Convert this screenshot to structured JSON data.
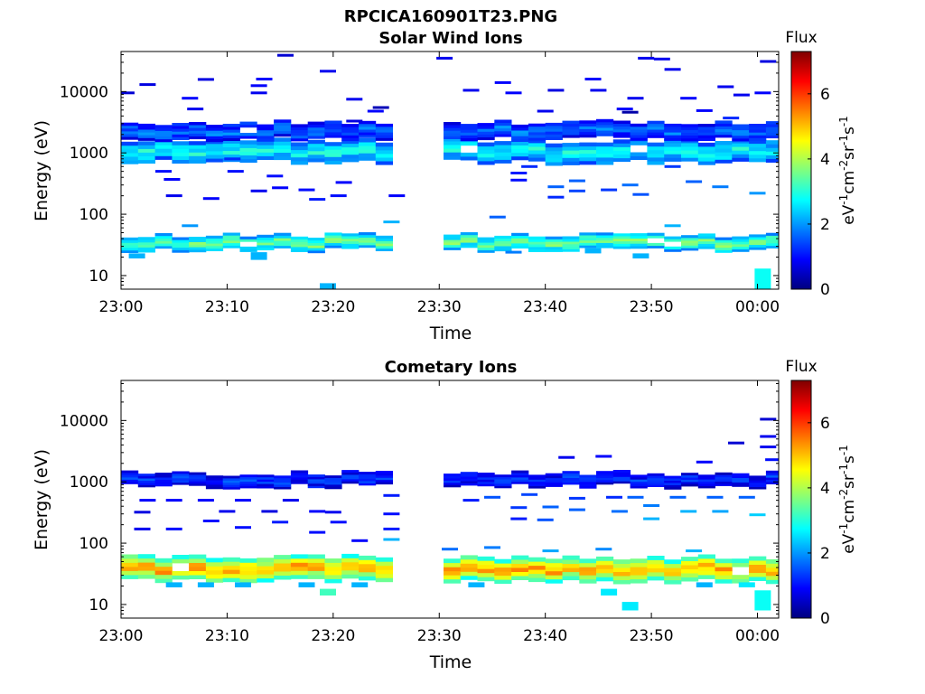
{
  "figure": {
    "title_line1": "RPCICA160901T23.PNG"
  },
  "colors": {
    "colormap": [
      "#00007f",
      "#0000ff",
      "#007fff",
      "#00ffff",
      "#7fff7f",
      "#ffff00",
      "#ff7f00",
      "#ff0000",
      "#7f0000"
    ],
    "axis": "#000000",
    "background": "#ffffff"
  },
  "chart_data": [
    {
      "type": "heatmap",
      "title": "Solar Wind Ions",
      "xlabel": "Time",
      "ylabel": "Energy (eV)",
      "xlim": [
        "23:00",
        "00:02"
      ],
      "xlim_minutes": [
        0,
        62
      ],
      "x_ticks": [
        "23:00",
        "23:10",
        "23:20",
        "23:30",
        "23:40",
        "23:50",
        "00:00"
      ],
      "y_scale": "log",
      "ylim": [
        6,
        45000
      ],
      "y_ticks": [
        10,
        100,
        1000,
        10000
      ],
      "y_tick_labels": [
        "10",
        "100",
        "1000",
        "10000"
      ],
      "colorbar": {
        "title": "Flux",
        "label": "eV-1cm-2sr-1s-1",
        "range": [
          0,
          7.3
        ],
        "ticks": [
          0,
          2,
          4,
          6
        ]
      },
      "data_gap_minutes": [
        27,
        30
      ],
      "cell_minutes": 1.6,
      "bands": [
        {
          "name": "low-energy ion band",
          "emin": 26,
          "emax": 46,
          "level": 3.4
        },
        {
          "name": "main solar wind band",
          "emin": 700,
          "emax": 1600,
          "level": 2.7
        },
        {
          "name": "upper band",
          "emin": 1700,
          "emax": 3200,
          "level": 1.6
        }
      ],
      "scatter": [
        {
          "t": 0.5,
          "e": 9500,
          "level": 0.6
        },
        {
          "t": 2.5,
          "e": 13000,
          "level": 0.7
        },
        {
          "t": 4.0,
          "e": 500,
          "level": 1.0
        },
        {
          "t": 4.8,
          "e": 370,
          "level": 0.9
        },
        {
          "t": 5.0,
          "e": 200,
          "level": 0.8
        },
        {
          "t": 6.5,
          "e": 7800,
          "level": 0.9
        },
        {
          "t": 7.0,
          "e": 5200,
          "level": 0.8
        },
        {
          "t": 8.0,
          "e": 15800,
          "level": 0.7
        },
        {
          "t": 8.5,
          "e": 180,
          "level": 0.9
        },
        {
          "t": 6.5,
          "e": 65,
          "level": 2.0
        },
        {
          "t": 10.5,
          "e": 800,
          "level": 1.2
        },
        {
          "t": 10.8,
          "e": 500,
          "level": 1.0
        },
        {
          "t": 13.0,
          "e": 9500,
          "level": 0.8
        },
        {
          "t": 13.0,
          "e": 12500,
          "level": 0.9
        },
        {
          "t": 13.5,
          "e": 16000,
          "level": 0.9
        },
        {
          "t": 13.0,
          "e": 240,
          "level": 0.8
        },
        {
          "t": 14.5,
          "e": 420,
          "level": 1.0
        },
        {
          "t": 15.0,
          "e": 270,
          "level": 0.9
        },
        {
          "t": 15.5,
          "e": 39000,
          "level": 0.6
        },
        {
          "t": 17.5,
          "e": 250,
          "level": 1.0
        },
        {
          "t": 18.5,
          "e": 175,
          "level": 1.1
        },
        {
          "t": 19.5,
          "e": 21500,
          "level": 0.8
        },
        {
          "t": 20.5,
          "e": 200,
          "level": 1.0
        },
        {
          "t": 21.0,
          "e": 330,
          "level": 0.9
        },
        {
          "t": 22.0,
          "e": 3300,
          "level": 0.7
        },
        {
          "t": 22.0,
          "e": 7500,
          "level": 0.8
        },
        {
          "t": 24.0,
          "e": 4800,
          "level": 0.9
        },
        {
          "t": 24.5,
          "e": 5500,
          "level": 0.4
        },
        {
          "t": 26.0,
          "e": 200,
          "level": 0.9
        },
        {
          "t": 25.5,
          "e": 75,
          "level": 2.2
        },
        {
          "t": 30.5,
          "e": 35000,
          "level": 0.8
        },
        {
          "t": 33.0,
          "e": 10500,
          "level": 0.8
        },
        {
          "t": 37.0,
          "e": 9500,
          "level": 0.9
        },
        {
          "t": 36.0,
          "e": 14000,
          "level": 0.9
        },
        {
          "t": 37.5,
          "e": 470,
          "level": 1.1
        },
        {
          "t": 37.5,
          "e": 360,
          "level": 1.0
        },
        {
          "t": 38.5,
          "e": 600,
          "level": 1.2
        },
        {
          "t": 40.0,
          "e": 4800,
          "level": 0.8
        },
        {
          "t": 41.0,
          "e": 10500,
          "level": 0.7
        },
        {
          "t": 41.0,
          "e": 280,
          "level": 1.6
        },
        {
          "t": 41.0,
          "e": 190,
          "level": 1.2
        },
        {
          "t": 43.0,
          "e": 350,
          "level": 1.6
        },
        {
          "t": 43.0,
          "e": 240,
          "level": 1.4
        },
        {
          "t": 44.5,
          "e": 16000,
          "level": 0.9
        },
        {
          "t": 45.0,
          "e": 10500,
          "level": 0.8
        },
        {
          "t": 46.0,
          "e": 250,
          "level": 1.3
        },
        {
          "t": 47.5,
          "e": 5200,
          "level": 0.9
        },
        {
          "t": 48.0,
          "e": 300,
          "level": 1.7
        },
        {
          "t": 48.5,
          "e": 7800,
          "level": 0.8
        },
        {
          "t": 48.0,
          "e": 4600,
          "level": 0.3
        },
        {
          "t": 49.0,
          "e": 210,
          "level": 1.5
        },
        {
          "t": 49.5,
          "e": 35000,
          "level": 0.8
        },
        {
          "t": 51.0,
          "e": 34000,
          "level": 0.8
        },
        {
          "t": 52.0,
          "e": 23000,
          "level": 0.8
        },
        {
          "t": 52.0,
          "e": 600,
          "level": 1.3
        },
        {
          "t": 53.5,
          "e": 7800,
          "level": 0.9
        },
        {
          "t": 54.0,
          "e": 340,
          "level": 1.6
        },
        {
          "t": 55.0,
          "e": 4900,
          "level": 0.9
        },
        {
          "t": 56.5,
          "e": 280,
          "level": 1.8
        },
        {
          "t": 57.0,
          "e": 12000,
          "level": 0.8
        },
        {
          "t": 57.5,
          "e": 3700,
          "level": 1.2
        },
        {
          "t": 58.5,
          "e": 8800,
          "level": 0.8
        },
        {
          "t": 60.0,
          "e": 220,
          "level": 2.0
        },
        {
          "t": 60.5,
          "e": 9500,
          "level": 0.9
        },
        {
          "t": 61.0,
          "e": 31000,
          "level": 0.7
        },
        {
          "t": 35.5,
          "e": 90,
          "level": 1.6
        },
        {
          "t": 37.0,
          "e": 24,
          "level": 1.8
        },
        {
          "t": 52.0,
          "e": 65,
          "level": 2.2
        }
      ],
      "low_patches": [
        {
          "t": 1.5,
          "emin": 19,
          "emax": 23,
          "level": 2.2
        },
        {
          "t": 13.0,
          "emin": 18,
          "emax": 24,
          "level": 2.2
        },
        {
          "t": 19.5,
          "emin": 6,
          "emax": 7.5,
          "level": 2.2
        },
        {
          "t": 49.0,
          "emin": 19,
          "emax": 23,
          "level": 2.2
        },
        {
          "t": 60.5,
          "emin": 6,
          "emax": 13,
          "level": 2.8
        },
        {
          "t": 44.5,
          "emin": 23,
          "emax": 28,
          "level": 2.2
        }
      ]
    },
    {
      "type": "heatmap",
      "title": "Cometary Ions",
      "xlabel": "Time",
      "ylabel": "Energy (eV)",
      "xlim": [
        "23:00",
        "00:02"
      ],
      "xlim_minutes": [
        0,
        62
      ],
      "x_ticks": [
        "23:00",
        "23:10",
        "23:20",
        "23:30",
        "23:40",
        "23:50",
        "00:00"
      ],
      "y_scale": "log",
      "ylim": [
        6,
        45000
      ],
      "y_ticks": [
        10,
        100,
        1000,
        10000
      ],
      "y_tick_labels": [
        "10",
        "100",
        "1000",
        "10000"
      ],
      "colorbar": {
        "title": "Flux",
        "label": "eV-1cm-2sr-1s-1",
        "range": [
          0,
          7.3
        ],
        "ticks": [
          0,
          2,
          4,
          6
        ]
      },
      "data_gap_minutes": [
        27,
        30
      ],
      "cell_minutes": 1.6,
      "bands": [
        {
          "name": "cometary low-energy band",
          "emin": 24,
          "emax": 60,
          "level": 5.0
        },
        {
          "name": "cometary 1 keV band",
          "emin": 850,
          "emax": 1400,
          "level": 1.2
        }
      ],
      "scatter": [
        {
          "t": 2.5,
          "e": 500,
          "level": 0.9
        },
        {
          "t": 2.0,
          "e": 320,
          "level": 0.7
        },
        {
          "t": 2.0,
          "e": 170,
          "level": 0.8
        },
        {
          "t": 5.0,
          "e": 170,
          "level": 1.0
        },
        {
          "t": 5.0,
          "e": 500,
          "level": 0.9
        },
        {
          "t": 8.5,
          "e": 230,
          "level": 1.0
        },
        {
          "t": 8.0,
          "e": 500,
          "level": 0.9
        },
        {
          "t": 10.0,
          "e": 330,
          "level": 0.8
        },
        {
          "t": 11.5,
          "e": 500,
          "level": 0.9
        },
        {
          "t": 11.5,
          "e": 180,
          "level": 1.0
        },
        {
          "t": 14.0,
          "e": 330,
          "level": 0.7
        },
        {
          "t": 15.0,
          "e": 220,
          "level": 1.1
        },
        {
          "t": 16.0,
          "e": 500,
          "level": 0.8
        },
        {
          "t": 18.5,
          "e": 330,
          "level": 0.9
        },
        {
          "t": 18.5,
          "e": 150,
          "level": 1.0
        },
        {
          "t": 20.0,
          "e": 320,
          "level": 0.8
        },
        {
          "t": 20.5,
          "e": 220,
          "level": 1.0
        },
        {
          "t": 22.5,
          "e": 110,
          "level": 0.9
        },
        {
          "t": 25.5,
          "e": 600,
          "level": 1.1
        },
        {
          "t": 25.5,
          "e": 300,
          "level": 1.0
        },
        {
          "t": 25.5,
          "e": 170,
          "level": 1.1
        },
        {
          "t": 25.5,
          "e": 115,
          "level": 2.2
        },
        {
          "t": 33.0,
          "e": 500,
          "level": 1.1
        },
        {
          "t": 35.0,
          "e": 560,
          "level": 1.5
        },
        {
          "t": 37.5,
          "e": 380,
          "level": 1.3
        },
        {
          "t": 37.5,
          "e": 250,
          "level": 1.1
        },
        {
          "t": 38.5,
          "e": 620,
          "level": 1.4
        },
        {
          "t": 40.5,
          "e": 390,
          "level": 1.6
        },
        {
          "t": 40.0,
          "e": 240,
          "level": 1.5
        },
        {
          "t": 42.0,
          "e": 2500,
          "level": 0.8
        },
        {
          "t": 43.0,
          "e": 540,
          "level": 1.3
        },
        {
          "t": 43.0,
          "e": 350,
          "level": 1.6
        },
        {
          "t": 45.5,
          "e": 2600,
          "level": 0.9
        },
        {
          "t": 46.5,
          "e": 560,
          "level": 1.2
        },
        {
          "t": 47.0,
          "e": 330,
          "level": 1.7
        },
        {
          "t": 48.5,
          "e": 560,
          "level": 1.6
        },
        {
          "t": 50.0,
          "e": 410,
          "level": 1.8
        },
        {
          "t": 50.0,
          "e": 250,
          "level": 2.2
        },
        {
          "t": 52.5,
          "e": 560,
          "level": 1.6
        },
        {
          "t": 53.5,
          "e": 330,
          "level": 2.2
        },
        {
          "t": 55.0,
          "e": 2100,
          "level": 0.9
        },
        {
          "t": 56.0,
          "e": 560,
          "level": 1.6
        },
        {
          "t": 56.5,
          "e": 330,
          "level": 2.1
        },
        {
          "t": 58.0,
          "e": 4300,
          "level": 0.6
        },
        {
          "t": 59.0,
          "e": 560,
          "level": 1.6
        },
        {
          "t": 60.0,
          "e": 290,
          "level": 2.4
        },
        {
          "t": 61.0,
          "e": 10500,
          "level": 0.6
        },
        {
          "t": 61.0,
          "e": 5500,
          "level": 0.8
        },
        {
          "t": 61.0,
          "e": 3700,
          "level": 0.8
        },
        {
          "t": 61.5,
          "e": 2300,
          "level": 1.0
        },
        {
          "t": 45.5,
          "e": 80,
          "level": 1.9
        },
        {
          "t": 40.5,
          "e": 75,
          "level": 2.1
        },
        {
          "t": 54.0,
          "e": 75,
          "level": 2.2
        },
        {
          "t": 35.0,
          "e": 85,
          "level": 1.8
        },
        {
          "t": 31.0,
          "e": 80,
          "level": 1.7
        }
      ],
      "low_patches": [
        {
          "t": 5.0,
          "emin": 19,
          "emax": 23,
          "level": 2.2
        },
        {
          "t": 8.0,
          "emin": 19,
          "emax": 23,
          "level": 2.2
        },
        {
          "t": 11.5,
          "emin": 19,
          "emax": 23,
          "level": 2.2
        },
        {
          "t": 17.5,
          "emin": 19,
          "emax": 23,
          "level": 2.2
        },
        {
          "t": 19.5,
          "emin": 14,
          "emax": 18,
          "level": 3.2
        },
        {
          "t": 22.5,
          "emin": 19,
          "emax": 23,
          "level": 2.2
        },
        {
          "t": 33.5,
          "emin": 19,
          "emax": 23,
          "level": 2.2
        },
        {
          "t": 46.0,
          "emin": 14,
          "emax": 18,
          "level": 2.6
        },
        {
          "t": 48.0,
          "emin": 8,
          "emax": 11,
          "level": 2.6
        },
        {
          "t": 55.0,
          "emin": 19,
          "emax": 23,
          "level": 2.2
        },
        {
          "t": 60.5,
          "emin": 8,
          "emax": 17,
          "level": 2.8
        },
        {
          "t": 59.0,
          "emin": 19,
          "emax": 23,
          "level": 2.6
        }
      ]
    }
  ]
}
